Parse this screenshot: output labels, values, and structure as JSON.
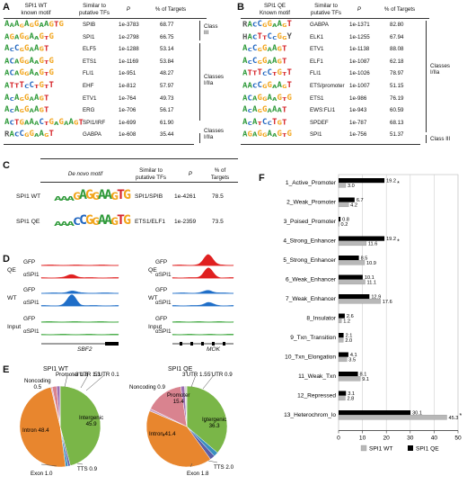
{
  "panels": {
    "A": "A",
    "B": "B",
    "C": "C",
    "D": "D",
    "E": "E",
    "F": "F"
  },
  "panelA": {
    "headers": {
      "motif": "SPI1 WT\nknown motif",
      "tf": "Similar to\nputative TFs",
      "p": "P",
      "pct": "% of Targets"
    },
    "rows": [
      {
        "motif": "AAAGAGGAAGTG",
        "tf": "SPIB",
        "p": "1e-3783",
        "pct": "68.77"
      },
      {
        "motif": "AGAGGAAGTG",
        "tf": "SPI1",
        "p": "1e-2798",
        "pct": "66.75"
      },
      {
        "motif": "ACCGGAAGT",
        "tf": "ELF5",
        "p": "1e-1288",
        "pct": "53.14"
      },
      {
        "motif": "ACAGGAAGTG",
        "tf": "ETS1",
        "p": "1e-1169",
        "pct": "53.84"
      },
      {
        "motif": "ACAGGAAGTG",
        "tf": "FLI1",
        "p": "1e-951",
        "pct": "48.27"
      },
      {
        "motif": "ATTTCCTGTT",
        "tf": "EHF",
        "p": "1e-812",
        "pct": "57.97"
      },
      {
        "motif": "ACAGGAAGT",
        "tf": "ETV1",
        "p": "1e-764",
        "pct": "49.73"
      },
      {
        "motif": "ACAGGAAGT",
        "tf": "ERG",
        "p": "1e-706",
        "pct": "56.17"
      },
      {
        "motif": "ACTGAAACTGAGAAGT",
        "tf": "SPI1/IRF",
        "p": "1e-699",
        "pct": "61.90"
      },
      {
        "motif": "RACCGGAAGT",
        "tf": "GABPA",
        "p": "1e-608",
        "pct": "35.44"
      }
    ],
    "classes": [
      {
        "label": "Class\nIII"
      },
      {
        "label": "Classes\nI/IIa"
      },
      {
        "label": "Classes\nI/IIa"
      }
    ]
  },
  "panelB": {
    "headers": {
      "motif": "SPI1 QE\nKnown motif",
      "tf": "Similar to\nputative TFs",
      "p": "P",
      "pct": "% of Targets"
    },
    "rows": [
      {
        "motif": "RACCGGAAGT",
        "tf": "GABPA",
        "p": "1e-1371",
        "pct": "82.80"
      },
      {
        "motif": "HACTTCCGGY",
        "tf": "ELK1",
        "p": "1e-1255",
        "pct": "67.94"
      },
      {
        "motif": "ACCGGAAGT",
        "tf": "ETV1",
        "p": "1e-1138",
        "pct": "88.08"
      },
      {
        "motif": "ACCGGAAGT",
        "tf": "ELF1",
        "p": "1e-1087",
        "pct": "62.18"
      },
      {
        "motif": "ATTTCCTGTT",
        "tf": "FLI1",
        "p": "1e-1026",
        "pct": "78.97"
      },
      {
        "motif": "AACCGGAAGT",
        "tf": "ETS/promoter",
        "p": "1e-1007",
        "pct": "51.15"
      },
      {
        "motif": "ACAGGAAGTG",
        "tf": "ETS1",
        "p": "1e-986",
        "pct": "76.19"
      },
      {
        "motif": "ACAGGAAAT",
        "tf": "EWS:FLI1",
        "p": "1e-943",
        "pct": "60.59"
      },
      {
        "motif": "ACATCCTGT",
        "tf": "SPDEF",
        "p": "1e-787",
        "pct": "68.13"
      },
      {
        "motif": "AGAGGAAGTG",
        "tf": "SPI1",
        "p": "1e-756",
        "pct": "51.37"
      }
    ],
    "classes": [
      {
        "label": "Classes\nI/IIa"
      },
      {
        "label": "Class III"
      }
    ]
  },
  "panelC": {
    "headers": {
      "motif": "De novo motif",
      "tf": "Similar to\nputative TFs",
      "p": "P",
      "pct": "% of\nTargets"
    },
    "rows": [
      {
        "label": "SPI1 WT",
        "motif": "AAAGAGGAAGTG",
        "tf": "SPI1/SPIB",
        "p": "1e-4261",
        "pct": "78.5"
      },
      {
        "label": "SPI1 QE",
        "motif": "AAACCGGAAGTG",
        "tf": "ETS1/ELF1",
        "p": "1e-2359",
        "pct": "73.5"
      }
    ]
  },
  "panelD": {
    "groups": [
      {
        "label": "QE",
        "tracks": [
          "GFP",
          "αSPI1"
        ]
      },
      {
        "label": "WT",
        "tracks": [
          "GFP",
          "αSPI1"
        ]
      },
      {
        "label": "Input",
        "tracks": [
          "GFP",
          "αSPI1"
        ]
      }
    ],
    "genes": [
      "SBF2",
      "MOK"
    ]
  },
  "panelE": {
    "wt": {
      "title": "SPI1 WT",
      "slices": [
        {
          "label": "Intergenic",
          "value": 45.9,
          "color": "#7ab648"
        },
        {
          "label": "TTS",
          "value": 0.9,
          "color": "#5b5ea8"
        },
        {
          "label": "Exon",
          "value": 1.0,
          "color": "#3a8fc0"
        },
        {
          "label": "Intron",
          "value": 48.4,
          "color": "#e8862e"
        },
        {
          "label": "Noncoding",
          "value": 0.5,
          "color": "#caa3c8"
        },
        {
          "label": "Promoter",
          "value": 1.8,
          "color": "#d9838f"
        },
        {
          "label": "3'UTR",
          "value": 1.3,
          "color": "#9c6fb2"
        },
        {
          "label": "5'UTR",
          "value": 0.1,
          "color": "#d5d5d5"
        }
      ],
      "texts": {
        "intergenic": "Intergenic\n45.9",
        "intron": "Intron 48.4",
        "exon": "Exon 1.0",
        "tts": "TTS 0.9",
        "noncoding": "Noncoding\n0.5",
        "promoter": "Promoter 1.8",
        "utr3": "3'UTR 1.3",
        "utr5": "5'UTR 0.1"
      }
    },
    "qe": {
      "title": "SPI1 QE",
      "slices": [
        {
          "label": "Intergenic",
          "value": 36.3,
          "color": "#7ab648"
        },
        {
          "label": "Exon",
          "value": 1.8,
          "color": "#3a8fc0"
        },
        {
          "label": "TTS",
          "value": 2.0,
          "color": "#5b5ea8"
        },
        {
          "label": "Intron",
          "value": 41.4,
          "color": "#e8862e"
        },
        {
          "label": "Noncoding",
          "value": 0.9,
          "color": "#caa3c8"
        },
        {
          "label": "Promoter",
          "value": 15.4,
          "color": "#d9838f"
        },
        {
          "label": "3'UTR",
          "value": 1.5,
          "color": "#9c6fb2"
        },
        {
          "label": "5'UTR",
          "value": 0.9,
          "color": "#d5d5d5"
        }
      ],
      "texts": {
        "intergenic": "Intergenic\n36.3",
        "intron": "Intron 41.4",
        "exon": "Exon 1.8",
        "tts": "TTS 2.0",
        "noncoding": "Noncoding 0.9",
        "promoter": "Promoter\n15.4",
        "utr3": "3'UTR 1.5",
        "utr5": "5'UTR 0.9"
      }
    }
  },
  "chart_data": {
    "type": "bar",
    "orientation": "horizontal",
    "categories": [
      "1_Active_Promoter",
      "2_Weak_Promoter",
      "3_Poised_Promoter",
      "4_Strong_Enhancer",
      "5_Strong_Enhancer",
      "6_Weak_Enhancer",
      "7_Weak_Enhancer",
      "8_Insulator",
      "9_Txn_Transition",
      "10_Txn_Elongation",
      "11_Weak_Txn",
      "12_Repressed",
      "13_Heterochrom_lo"
    ],
    "series": [
      {
        "name": "SPI1 QE",
        "color": "#000000",
        "values": [
          19.2,
          6.7,
          0.8,
          19.2,
          8.5,
          10.1,
          12.9,
          2.6,
          2.1,
          4.1,
          8.1,
          3.1,
          30.1
        ]
      },
      {
        "name": "SPI1 WT",
        "color": "#b8b8b8",
        "values": [
          3.0,
          4.2,
          0.2,
          11.6,
          10.9,
          11.1,
          17.6,
          1.2,
          2.0,
          3.5,
          9.1,
          2.8,
          45.3
        ]
      }
    ],
    "value_labels_qe": [
      "19.2",
      "6.7",
      "0.8",
      "19.2",
      "8.5",
      "10.1",
      "12.9",
      "2.6",
      "2.1",
      "4.1",
      "8.1",
      "3.1",
      "30.1"
    ],
    "value_labels_wt": [
      "3.0",
      "4.2",
      "0.2",
      "11.6",
      "10.9",
      "11.1",
      "17.6",
      "1.2",
      "2.0",
      "3.5",
      "9.1",
      "2.8",
      "45.3"
    ],
    "significant": [
      true,
      false,
      false,
      true,
      false,
      false,
      false,
      false,
      false,
      false,
      false,
      false,
      true
    ],
    "star": "*",
    "xticks": [
      0,
      10,
      20,
      30,
      40,
      50
    ],
    "xlim": [
      0,
      50
    ],
    "grid": true,
    "legend": {
      "position": "bottom",
      "entries": [
        "SPI1 WT",
        "SPI1 QE"
      ]
    }
  },
  "colors": {
    "A": "#2f9a3a",
    "C": "#2166c0",
    "G": "#f2a51c",
    "T": "#d6262b",
    "peak_red": "#e02020",
    "peak_blue": "#1f6ec8",
    "peak_green": "#2ca02c"
  }
}
